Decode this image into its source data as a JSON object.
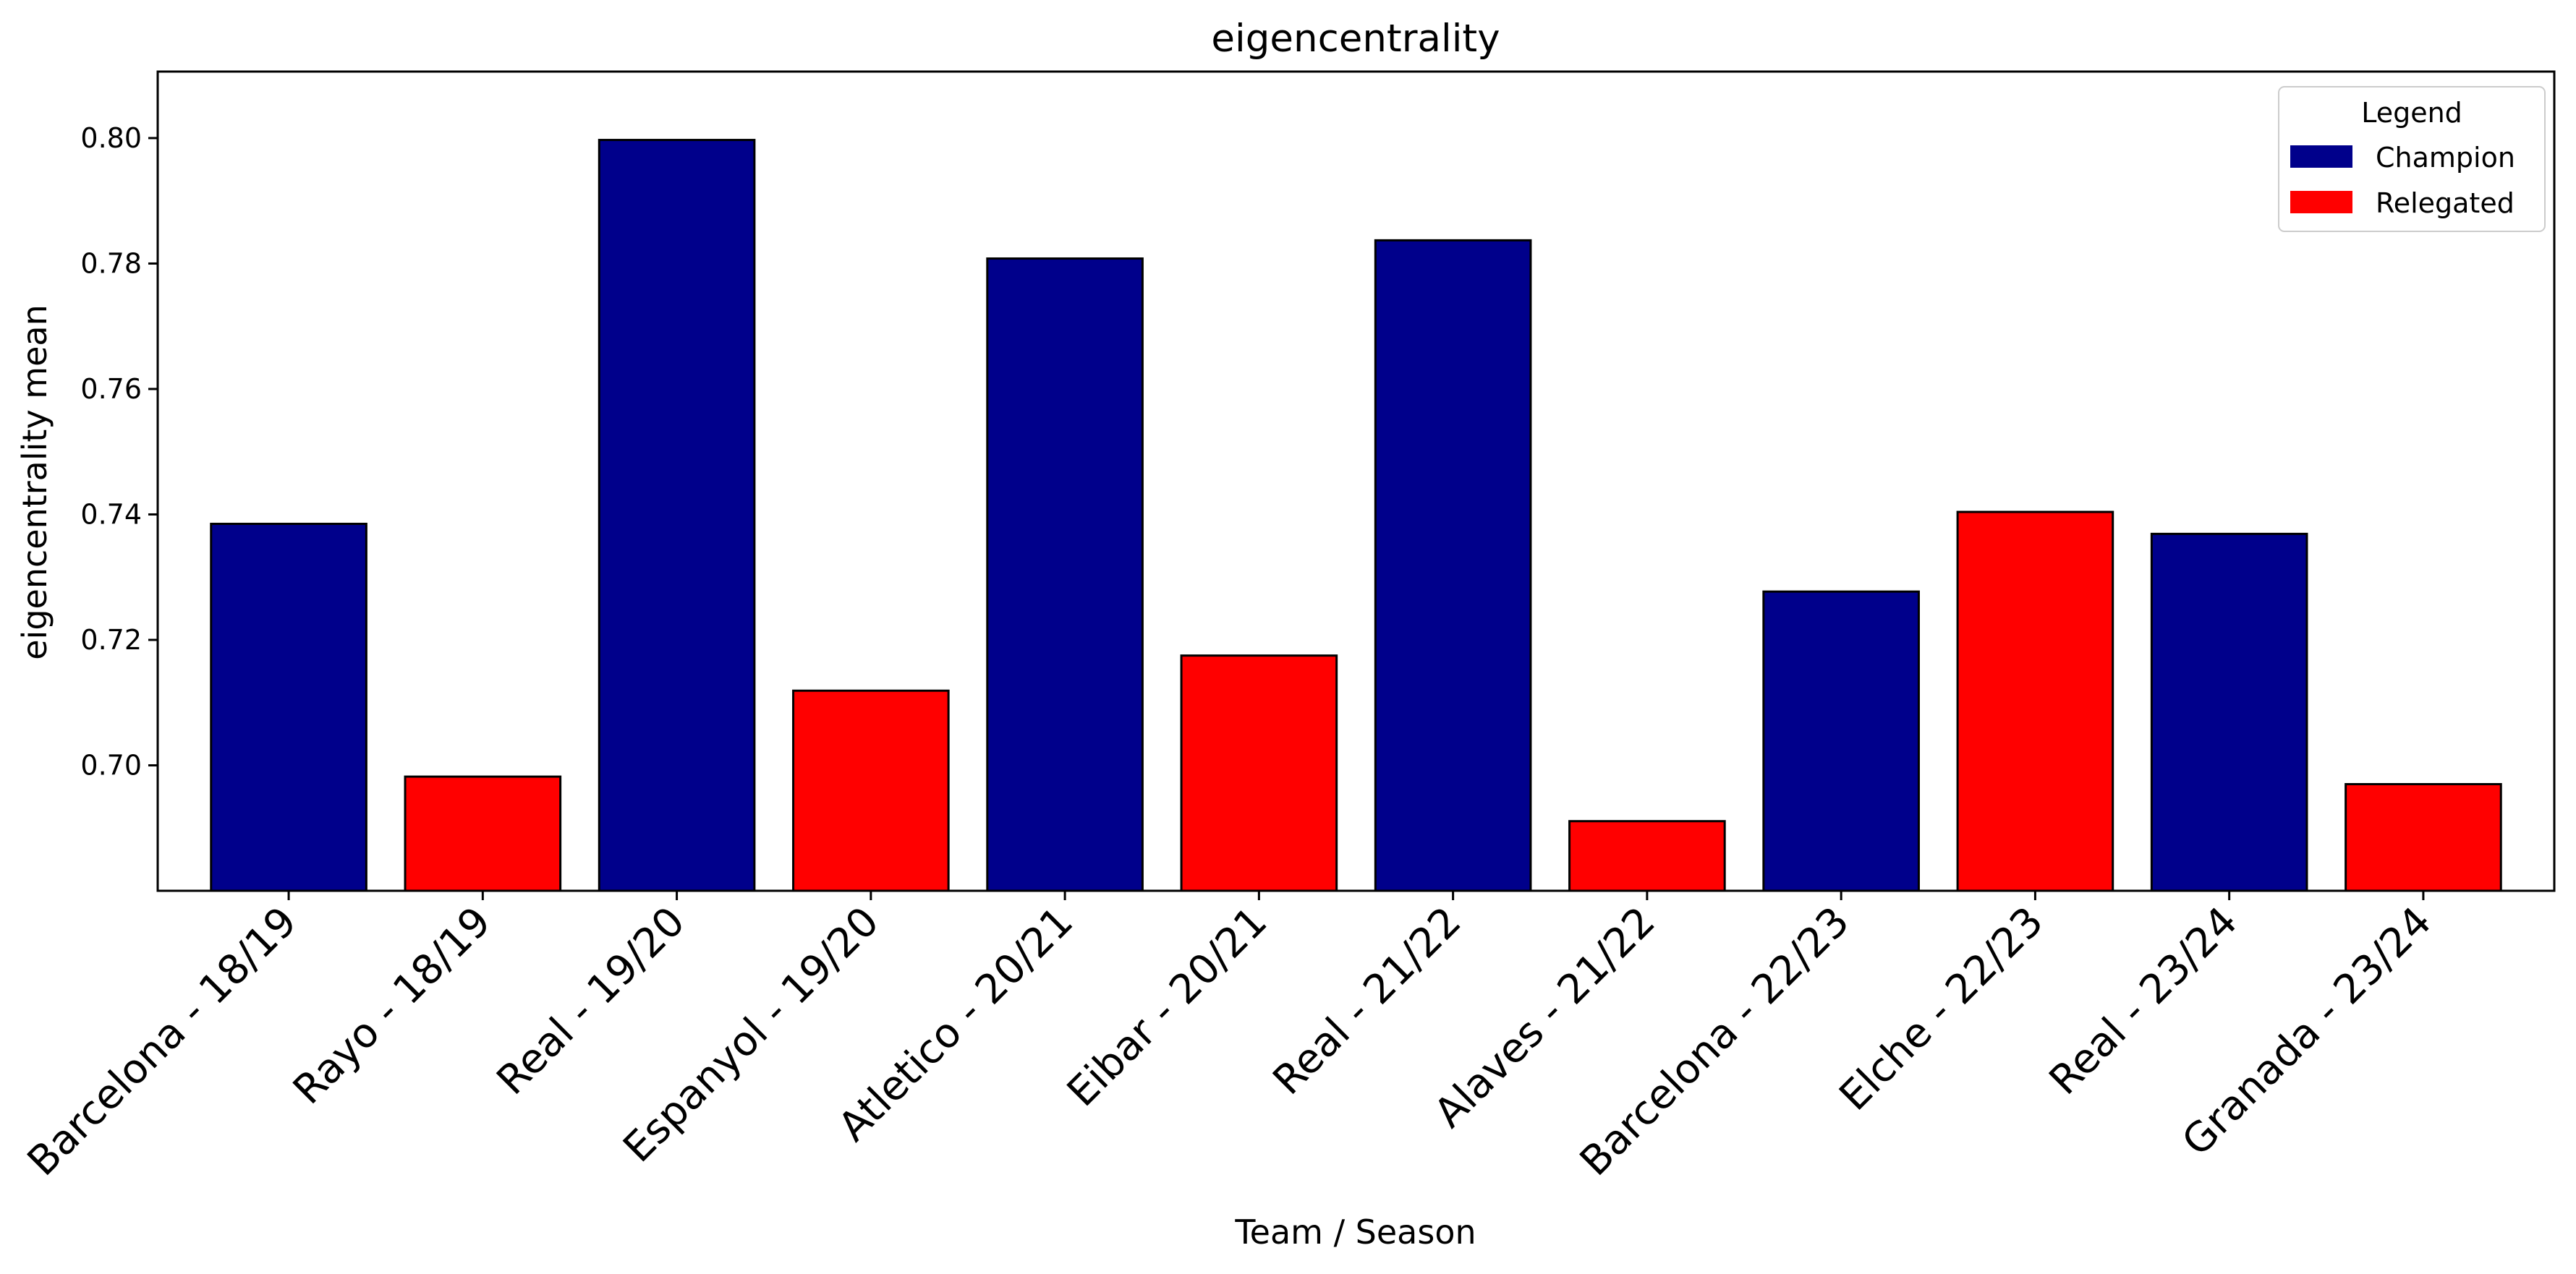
{
  "chart_data": {
    "type": "bar",
    "title": "eigencentrality",
    "xlabel": "Team / Season",
    "ylabel": "eigencentrality mean",
    "categories": [
      "Barcelona - 18/19",
      "Rayo - 18/19",
      "Real - 19/20",
      "Espanyol - 19/20",
      "Atletico - 20/21",
      "Eibar - 20/21",
      "Real - 21/22",
      "Alaves - 21/22",
      "Barcelona - 22/23",
      "Elche - 22/23",
      "Real - 23/24",
      "Granada - 23/24"
    ],
    "values": [
      0.7385,
      0.6982,
      0.7997,
      0.7119,
      0.7808,
      0.7175,
      0.7837,
      0.6911,
      0.7277,
      0.7404,
      0.7369,
      0.697
    ],
    "status": [
      "Champion",
      "Relegated",
      "Champion",
      "Relegated",
      "Champion",
      "Relegated",
      "Champion",
      "Relegated",
      "Champion",
      "Relegated",
      "Champion",
      "Relegated"
    ],
    "ylim": [
      0.68,
      0.8106
    ],
    "yticks": [
      0.7,
      0.72,
      0.74,
      0.76,
      0.78,
      0.8
    ],
    "ytick_labels": [
      "0.70",
      "0.72",
      "0.74",
      "0.76",
      "0.78",
      "0.80"
    ],
    "grid": false,
    "legend": {
      "title": "Legend",
      "placement": "top-right",
      "entries": [
        {
          "label": "Champion",
          "color": "#00008b"
        },
        {
          "label": "Relegated",
          "color": "#ff0000"
        }
      ]
    },
    "colors": {
      "Champion": "#00008b",
      "Relegated": "#ff0000"
    }
  }
}
